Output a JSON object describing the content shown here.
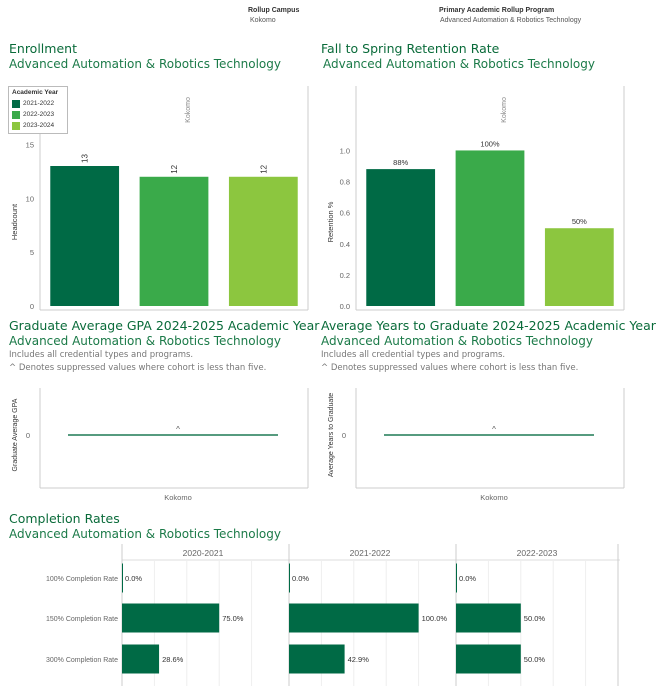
{
  "filters": {
    "campus_label": "Rollup Campus",
    "campus_value": "Kokomo",
    "program_label": "Primary Academic Rollup Program",
    "program_value": "Advanced Automation & Robotics Technology"
  },
  "enrollment": {
    "title": "Enrollment",
    "subtitle": "Advanced Automation & Robotics Technology",
    "legend_title": "Academic Year",
    "legend": [
      {
        "label": "2021-2022",
        "color": "#006a45"
      },
      {
        "label": "2022-2023",
        "color": "#3aaa4a"
      },
      {
        "label": "2023-2024",
        "color": "#8cc63f"
      }
    ]
  },
  "retention": {
    "title": "Fall to Spring Retention Rate",
    "subtitle": "Advanced Automation & Robotics Technology"
  },
  "gpa": {
    "title": "Graduate Average GPA 2024-2025 Academic Year",
    "subtitle": "Advanced Automation & Robotics Technology",
    "note1": "Includes all credential types and programs.",
    "note2": "^ Denotes suppressed values where cohort is less than five."
  },
  "years": {
    "title": "Average Years to Graduate 2024-2025 Academic Year",
    "subtitle": "Advanced Automation & Robotics Technology",
    "note1": "Includes all credential types and programs.",
    "note2": "^ Denotes suppressed values where cohort is less than five."
  },
  "completion": {
    "title": "Completion Rates",
    "subtitle": "Advanced Automation & Robotics Technology"
  },
  "chart_data": [
    {
      "type": "bar",
      "header": "Kokomo",
      "categories": [
        "2021-2022",
        "2022-2023",
        "2023-2024"
      ],
      "values": [
        13,
        12,
        12
      ],
      "value_labels": [
        "13",
        "12",
        "12"
      ],
      "colors": [
        "#006a45",
        "#3aaa4a",
        "#8cc63f"
      ],
      "ylabel": "Headcount",
      "ylim": [
        0,
        15.6
      ],
      "yticks": [
        0,
        5,
        10,
        15
      ],
      "ytick_labels": [
        "0",
        "5",
        "10",
        "15"
      ]
    },
    {
      "type": "bar",
      "header": "Kokomo",
      "categories": [
        "2021-2022",
        "2022-2023",
        "2023-2024"
      ],
      "values": [
        0.88,
        1.0,
        0.5
      ],
      "value_labels": [
        "88%",
        "100%",
        "50%"
      ],
      "colors": [
        "#006a45",
        "#3aaa4a",
        "#8cc63f"
      ],
      "ylabel": "Retention %",
      "ylim": [
        0,
        1.08
      ],
      "yticks": [
        0,
        0.2,
        0.4,
        0.6,
        0.8,
        1.0
      ],
      "ytick_labels": [
        "0.0",
        "0.2",
        "0.4",
        "0.6",
        "0.8",
        "1.0"
      ]
    },
    {
      "type": "bar",
      "categories": [
        "Kokomo"
      ],
      "values": [
        0
      ],
      "value_labels": [
        "^"
      ],
      "ylabel": "Graduate Average GPA",
      "yticks": [
        0
      ],
      "ytick_labels": [
        "0"
      ]
    },
    {
      "type": "bar",
      "categories": [
        "Kokomo"
      ],
      "values": [
        0
      ],
      "value_labels": [
        "^"
      ],
      "ylabel": "Average Years to Graduate",
      "yticks": [
        0
      ],
      "ytick_labels": [
        "0"
      ]
    },
    {
      "type": "bar",
      "orientation": "horizontal",
      "columns": [
        "2020-2021",
        "2021-2022",
        "2022-2023"
      ],
      "rows": [
        "100% Completion Rate",
        "150% Completion Rate",
        "300% Completion Rate"
      ],
      "values": [
        [
          0,
          75,
          28.6
        ],
        [
          0,
          100,
          42.9
        ],
        [
          0,
          50,
          50
        ]
      ],
      "value_labels": [
        [
          "0.0%",
          "75.0%",
          "28.6%"
        ],
        [
          "0.0%",
          "100.0%",
          "42.9%"
        ],
        [
          "0.0%",
          "50.0%",
          "50.0%"
        ]
      ],
      "color": "#006a45",
      "xlim": [
        0,
        100
      ]
    }
  ]
}
